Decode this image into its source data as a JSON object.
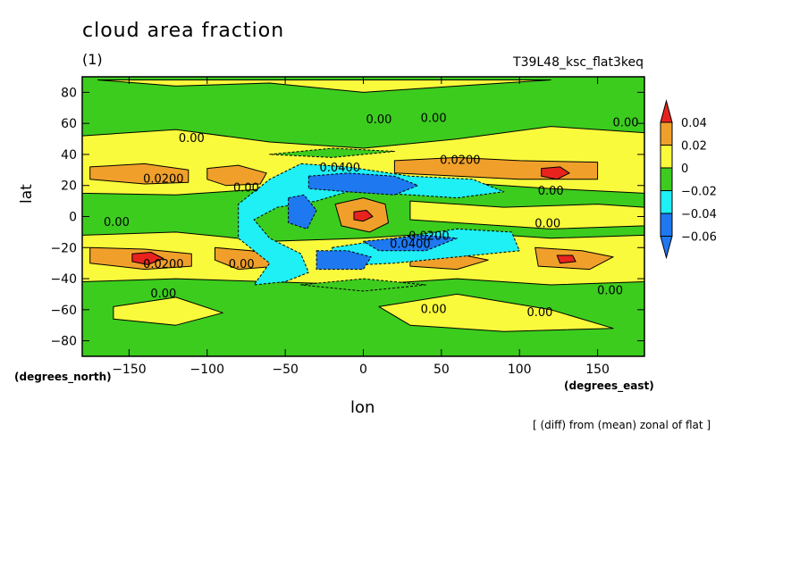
{
  "chart_data": {
    "type": "contour",
    "title": "cloud area fraction",
    "units": "(1)",
    "run_id": "T39L48_ksc_flat3keq",
    "xlabel": "lon",
    "ylabel": "lat",
    "x_units": "(degrees_east)",
    "y_units": "(degrees_north)",
    "note": "[ (diff) from (mean) zonal of flat ]",
    "xlim": [
      -180,
      180
    ],
    "ylim": [
      -90,
      90
    ],
    "x_ticks": [
      -150,
      -100,
      -50,
      0,
      50,
      100,
      150
    ],
    "x_tick_labels": [
      "−150",
      "−100",
      "−50",
      "0",
      "50",
      "100",
      "150"
    ],
    "y_ticks": [
      -80,
      -60,
      -40,
      -20,
      0,
      20,
      40,
      60,
      80
    ],
    "y_tick_labels": [
      "−80",
      "−60",
      "−40",
      "−20",
      "0",
      "20",
      "40",
      "60",
      "80"
    ],
    "colorbar": {
      "levels": [
        0.04,
        0.02,
        0,
        -0.02,
        -0.04,
        -0.06
      ],
      "labels": [
        "0.04",
        "0.02",
        "0",
        "−0.02",
        "−0.04",
        "−0.06"
      ],
      "colors": [
        "#e8231e",
        "#f0a02a",
        "#fafa3c",
        "#3ccc1e",
        "#1ef0f5",
        "#1e78f0",
        "#3c4be6"
      ]
    },
    "regions": [
      {
        "name": "bands-yellow-north",
        "level": "0",
        "color": "#fafa3c",
        "points": [
          [
            -180,
            52
          ],
          [
            -120,
            56
          ],
          [
            -60,
            48
          ],
          [
            0,
            44
          ],
          [
            60,
            50
          ],
          [
            120,
            58
          ],
          [
            180,
            54
          ],
          [
            180,
            15
          ],
          [
            120,
            18
          ],
          [
            60,
            22
          ],
          [
            0,
            28
          ],
          [
            -60,
            18
          ],
          [
            -120,
            14
          ],
          [
            -180,
            15
          ]
        ]
      },
      {
        "name": "band-yellow-south",
        "level": "0",
        "color": "#fafa3c",
        "points": [
          [
            -180,
            -12
          ],
          [
            -120,
            -10
          ],
          [
            -60,
            -16
          ],
          [
            0,
            -14
          ],
          [
            60,
            -10
          ],
          [
            120,
            -14
          ],
          [
            180,
            -12
          ],
          [
            180,
            -42
          ],
          [
            120,
            -44
          ],
          [
            60,
            -40
          ],
          [
            0,
            -44
          ],
          [
            -60,
            -42
          ],
          [
            -120,
            -40
          ],
          [
            -180,
            -42
          ]
        ]
      },
      {
        "name": "yellow-patch-north-pole",
        "level": "0",
        "color": "#fafa3c",
        "points": [
          [
            -170,
            88
          ],
          [
            -120,
            84
          ],
          [
            -60,
            86
          ],
          [
            0,
            80
          ],
          [
            60,
            84
          ],
          [
            120,
            88
          ],
          [
            60,
            88
          ],
          [
            0,
            88
          ]
        ]
      },
      {
        "name": "yellow-patch-south",
        "level": "0",
        "color": "#fafa3c",
        "points": [
          [
            -160,
            -58
          ],
          [
            -120,
            -52
          ],
          [
            -90,
            -62
          ],
          [
            -120,
            -70
          ],
          [
            -160,
            -66
          ]
        ]
      },
      {
        "name": "yellow-patch-south-2",
        "level": "0",
        "color": "#fafa3c",
        "points": [
          [
            10,
            -58
          ],
          [
            60,
            -50
          ],
          [
            120,
            -60
          ],
          [
            160,
            -72
          ],
          [
            90,
            -74
          ],
          [
            30,
            -70
          ]
        ]
      },
      {
        "name": "yellow-equator-band",
        "level": "0",
        "color": "#fafa3c",
        "points": [
          [
            30,
            10
          ],
          [
            90,
            6
          ],
          [
            150,
            8
          ],
          [
            180,
            6
          ],
          [
            180,
            -6
          ],
          [
            120,
            -8
          ],
          [
            60,
            -4
          ],
          [
            30,
            -2
          ]
        ]
      },
      {
        "name": "orange-north-1",
        "level": "0.02",
        "color": "#f0a02a",
        "points": [
          [
            -175,
            32
          ],
          [
            -140,
            34
          ],
          [
            -112,
            30
          ],
          [
            -112,
            22
          ],
          [
            -140,
            21
          ],
          [
            -175,
            24
          ]
        ]
      },
      {
        "name": "orange-north-2",
        "level": "0.02",
        "color": "#f0a02a",
        "points": [
          [
            -100,
            31
          ],
          [
            -80,
            33
          ],
          [
            -62,
            28
          ],
          [
            -66,
            21
          ],
          [
            -88,
            20
          ],
          [
            -100,
            24
          ]
        ]
      },
      {
        "name": "orange-north-3",
        "level": "0.02",
        "color": "#f0a02a",
        "points": [
          [
            20,
            36
          ],
          [
            60,
            38
          ],
          [
            100,
            36
          ],
          [
            150,
            35
          ],
          [
            150,
            24
          ],
          [
            100,
            24
          ],
          [
            60,
            26
          ],
          [
            20,
            28
          ]
        ]
      },
      {
        "name": "orange-south-1",
        "level": "0.02",
        "color": "#f0a02a",
        "points": [
          [
            -175,
            -20
          ],
          [
            -140,
            -21
          ],
          [
            -110,
            -24
          ],
          [
            -110,
            -32
          ],
          [
            -140,
            -34
          ],
          [
            -175,
            -30
          ]
        ]
      },
      {
        "name": "orange-south-2",
        "level": "0.02",
        "color": "#f0a02a",
        "points": [
          [
            -95,
            -20
          ],
          [
            -72,
            -22
          ],
          [
            -52,
            -26
          ],
          [
            -55,
            -32
          ],
          [
            -80,
            -34
          ],
          [
            -95,
            -28
          ]
        ]
      },
      {
        "name": "orange-south-3",
        "level": "0.02",
        "color": "#f0a02a",
        "points": [
          [
            30,
            -22
          ],
          [
            60,
            -24
          ],
          [
            80,
            -28
          ],
          [
            60,
            -34
          ],
          [
            30,
            -32
          ]
        ]
      },
      {
        "name": "orange-south-4",
        "level": "0.02",
        "color": "#f0a02a",
        "points": [
          [
            110,
            -20
          ],
          [
            140,
            -22
          ],
          [
            160,
            -26
          ],
          [
            145,
            -34
          ],
          [
            112,
            -32
          ]
        ]
      },
      {
        "name": "orange-equator",
        "level": "0.02",
        "color": "#f0a02a",
        "points": [
          [
            -18,
            8
          ],
          [
            0,
            12
          ],
          [
            14,
            8
          ],
          [
            16,
            -4
          ],
          [
            4,
            -10
          ],
          [
            -14,
            -6
          ]
        ]
      },
      {
        "name": "red-north",
        "level": "0.04",
        "color": "#e8231e",
        "points": [
          [
            114,
            31
          ],
          [
            126,
            32
          ],
          [
            132,
            28
          ],
          [
            124,
            24
          ],
          [
            114,
            26
          ]
        ]
      },
      {
        "name": "red-south",
        "level": "0.04",
        "color": "#e8231e",
        "points": [
          [
            -148,
            -24
          ],
          [
            -136,
            -23
          ],
          [
            -128,
            -27
          ],
          [
            -138,
            -31
          ],
          [
            -148,
            -29
          ]
        ]
      },
      {
        "name": "red-south-2",
        "level": "0.04",
        "color": "#e8231e",
        "points": [
          [
            124,
            -25
          ],
          [
            134,
            -25
          ],
          [
            136,
            -29
          ],
          [
            126,
            -30
          ]
        ]
      },
      {
        "name": "red-equator",
        "level": "0.04",
        "color": "#e8231e",
        "points": [
          [
            -6,
            3
          ],
          [
            2,
            4
          ],
          [
            6,
            0
          ],
          [
            0,
            -3
          ],
          [
            -6,
            -2
          ]
        ]
      },
      {
        "name": "cyan-wedge",
        "level": "-0.02",
        "color": "#1ef0f5",
        "points": [
          [
            -40,
            34
          ],
          [
            -10,
            32
          ],
          [
            30,
            26
          ],
          [
            70,
            24
          ],
          [
            90,
            16
          ],
          [
            60,
            12
          ],
          [
            30,
            14
          ],
          [
            -10,
            16
          ],
          [
            -30,
            10
          ],
          [
            -55,
            6
          ],
          [
            -70,
            -2
          ],
          [
            -60,
            -14
          ],
          [
            -40,
            -24
          ],
          [
            -35,
            -36
          ],
          [
            -50,
            -42
          ],
          [
            -70,
            -44
          ],
          [
            -60,
            -30
          ],
          [
            -80,
            -14
          ],
          [
            -80,
            8
          ],
          [
            -60,
            24
          ]
        ]
      },
      {
        "name": "cyan-south-arm",
        "level": "-0.02",
        "color": "#1ef0f5",
        "points": [
          [
            -20,
            -20
          ],
          [
            20,
            -14
          ],
          [
            60,
            -8
          ],
          [
            95,
            -10
          ],
          [
            100,
            -22
          ],
          [
            60,
            -26
          ],
          [
            20,
            -30
          ],
          [
            -20,
            -32
          ]
        ]
      },
      {
        "name": "blue-north-core",
        "level": "-0.04",
        "color": "#1e78f0",
        "points": [
          [
            -35,
            26
          ],
          [
            -10,
            28
          ],
          [
            20,
            26
          ],
          [
            35,
            20
          ],
          [
            20,
            14
          ],
          [
            -10,
            16
          ],
          [
            -35,
            18
          ]
        ]
      },
      {
        "name": "blue-west-core",
        "level": "-0.04",
        "color": "#1e78f0",
        "points": [
          [
            -48,
            12
          ],
          [
            -38,
            14
          ],
          [
            -30,
            4
          ],
          [
            -36,
            -8
          ],
          [
            -48,
            -4
          ]
        ]
      },
      {
        "name": "blue-south-core",
        "level": "-0.04",
        "color": "#1e78f0",
        "points": [
          [
            -30,
            -22
          ],
          [
            -10,
            -22
          ],
          [
            5,
            -26
          ],
          [
            0,
            -34
          ],
          [
            -30,
            -34
          ]
        ]
      },
      {
        "name": "blue-south-arm-core",
        "level": "-0.04",
        "color": "#1e78f0",
        "points": [
          [
            0,
            -16
          ],
          [
            40,
            -12
          ],
          [
            60,
            -14
          ],
          [
            40,
            -22
          ],
          [
            10,
            -22
          ]
        ]
      },
      {
        "name": "green-hole-north",
        "level": "-0.02",
        "color": "#3ccc1e",
        "points": [
          [
            -60,
            40
          ],
          [
            -20,
            44
          ],
          [
            20,
            42
          ],
          [
            -20,
            38
          ]
        ]
      },
      {
        "name": "green-hole-south",
        "level": "-0.02",
        "color": "#3ccc1e",
        "points": [
          [
            -40,
            -44
          ],
          [
            0,
            -40
          ],
          [
            40,
            -44
          ],
          [
            0,
            -48
          ]
        ]
      }
    ],
    "contour_labels": [
      {
        "text": "0.00",
        "x": -110,
        "y": 50
      },
      {
        "text": "0.00",
        "x": 10,
        "y": 62
      },
      {
        "text": "0.00",
        "x": 45,
        "y": 63
      },
      {
        "text": "0.00",
        "x": 168,
        "y": 60
      },
      {
        "text": "0.0200",
        "x": -128,
        "y": 24
      },
      {
        "text": "0.00",
        "x": -75,
        "y": 18
      },
      {
        "text": "0.0200",
        "x": 62,
        "y": 36
      },
      {
        "text": "0.00",
        "x": 120,
        "y": 16
      },
      {
        "text": "0.00",
        "x": -158,
        "y": -4
      },
      {
        "text": "0.00",
        "x": 118,
        "y": -5
      },
      {
        "text": "0.0400",
        "x": -15,
        "y": 31
      },
      {
        "text": "0.0400",
        "x": 30,
        "y": -18
      },
      {
        "text": "0.0200",
        "x": 42,
        "y": -13
      },
      {
        "text": "0.0200",
        "x": -128,
        "y": -31
      },
      {
        "text": "0.00",
        "x": -78,
        "y": -31
      },
      {
        "text": "0.00",
        "x": 158,
        "y": -48
      },
      {
        "text": "0.00",
        "x": -128,
        "y": -50
      },
      {
        "text": "0.00",
        "x": 113,
        "y": -62
      },
      {
        "text": "0.00",
        "x": 45,
        "y": -60
      }
    ]
  }
}
